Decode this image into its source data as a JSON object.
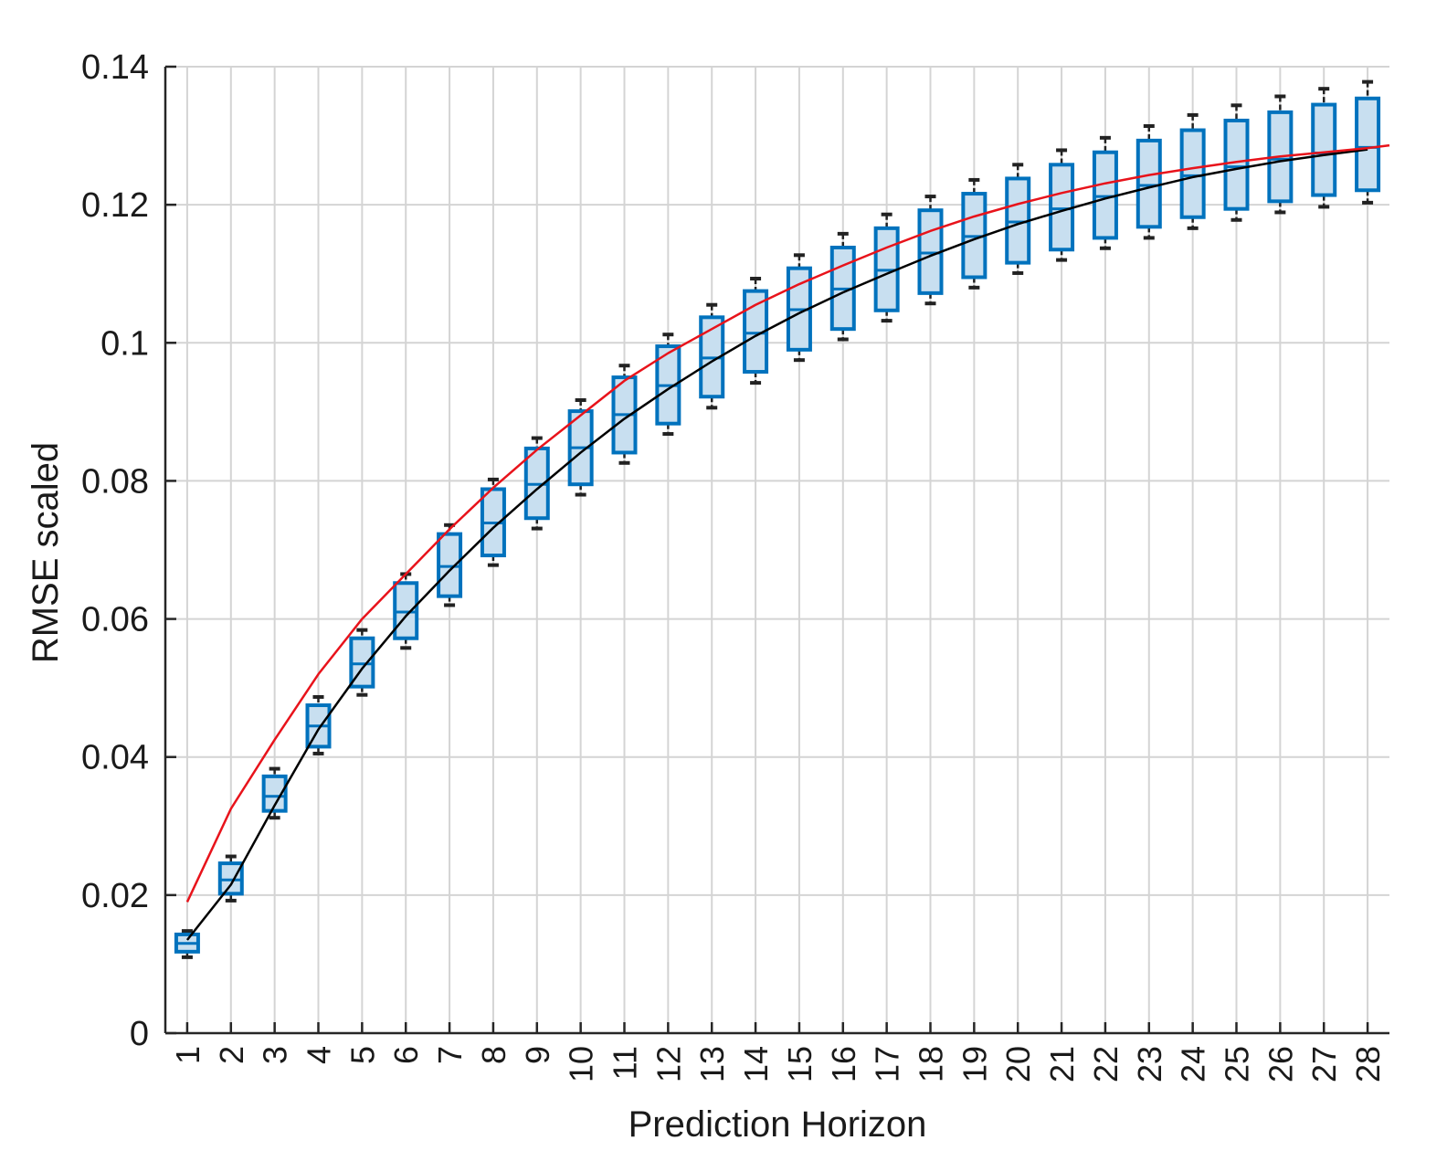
{
  "chart_data": {
    "type": "box",
    "title": "",
    "xlabel": "Prediction Horizon",
    "ylabel": "RMSE scaled",
    "xlim": [
      0.5,
      28.5
    ],
    "ylim": [
      0,
      0.14
    ],
    "x_ticks": [
      1,
      2,
      3,
      4,
      5,
      6,
      7,
      8,
      9,
      10,
      11,
      12,
      13,
      14,
      15,
      16,
      17,
      18,
      19,
      20,
      21,
      22,
      23,
      24,
      25,
      26,
      27,
      28
    ],
    "x_tick_labels": [
      "1",
      "2",
      "3",
      "4",
      "5",
      "6",
      "7",
      "8",
      "9",
      "10",
      "11",
      "12",
      "13",
      "14",
      "15",
      "16",
      "17",
      "18",
      "19",
      "20",
      "21",
      "22",
      "23",
      "24",
      "25",
      "26",
      "27",
      "28"
    ],
    "y_ticks": [
      0,
      0.02,
      0.04,
      0.06,
      0.08,
      0.1,
      0.12,
      0.14
    ],
    "y_tick_labels": [
      "0",
      "0.02",
      "0.04",
      "0.06",
      "0.08",
      "0.1",
      "0.12",
      "0.14"
    ],
    "grid": true,
    "boxes": [
      {
        "x": 1,
        "whisker_low": 0.011,
        "q1": 0.0118,
        "median": 0.013,
        "q3": 0.0143,
        "whisker_high": 0.0148
      },
      {
        "x": 2,
        "whisker_low": 0.0192,
        "q1": 0.0202,
        "median": 0.0222,
        "q3": 0.0246,
        "whisker_high": 0.0256
      },
      {
        "x": 3,
        "whisker_low": 0.0312,
        "q1": 0.0322,
        "median": 0.0343,
        "q3": 0.0372,
        "whisker_high": 0.0383
      },
      {
        "x": 4,
        "whisker_low": 0.0405,
        "q1": 0.0415,
        "median": 0.0445,
        "q3": 0.0475,
        "whisker_high": 0.0487
      },
      {
        "x": 5,
        "whisker_low": 0.049,
        "q1": 0.0502,
        "median": 0.0535,
        "q3": 0.0572,
        "whisker_high": 0.0584
      },
      {
        "x": 6,
        "whisker_low": 0.0558,
        "q1": 0.0572,
        "median": 0.061,
        "q3": 0.0652,
        "whisker_high": 0.0665
      },
      {
        "x": 7,
        "whisker_low": 0.062,
        "q1": 0.0633,
        "median": 0.0676,
        "q3": 0.0723,
        "whisker_high": 0.0736
      },
      {
        "x": 8,
        "whisker_low": 0.0678,
        "q1": 0.0692,
        "median": 0.0739,
        "q3": 0.0788,
        "whisker_high": 0.0802
      },
      {
        "x": 9,
        "whisker_low": 0.0731,
        "q1": 0.0746,
        "median": 0.0795,
        "q3": 0.0847,
        "whisker_high": 0.0862
      },
      {
        "x": 10,
        "whisker_low": 0.078,
        "q1": 0.0795,
        "median": 0.0848,
        "q3": 0.0901,
        "whisker_high": 0.0917
      },
      {
        "x": 11,
        "whisker_low": 0.0826,
        "q1": 0.0841,
        "median": 0.0896,
        "q3": 0.095,
        "whisker_high": 0.0967
      },
      {
        "x": 12,
        "whisker_low": 0.0868,
        "q1": 0.0883,
        "median": 0.0938,
        "q3": 0.0995,
        "whisker_high": 0.1012
      },
      {
        "x": 13,
        "whisker_low": 0.0906,
        "q1": 0.0922,
        "median": 0.0978,
        "q3": 0.1037,
        "whisker_high": 0.1055
      },
      {
        "x": 14,
        "whisker_low": 0.0942,
        "q1": 0.0958,
        "median": 0.1014,
        "q3": 0.1075,
        "whisker_high": 0.1093
      },
      {
        "x": 15,
        "whisker_low": 0.0975,
        "q1": 0.099,
        "median": 0.1048,
        "q3": 0.1108,
        "whisker_high": 0.1127
      },
      {
        "x": 16,
        "whisker_low": 0.1005,
        "q1": 0.102,
        "median": 0.1078,
        "q3": 0.1138,
        "whisker_high": 0.1158
      },
      {
        "x": 17,
        "whisker_low": 0.1032,
        "q1": 0.1047,
        "median": 0.1105,
        "q3": 0.1166,
        "whisker_high": 0.1186
      },
      {
        "x": 18,
        "whisker_low": 0.1057,
        "q1": 0.1072,
        "median": 0.113,
        "q3": 0.1192,
        "whisker_high": 0.1212
      },
      {
        "x": 19,
        "whisker_low": 0.108,
        "q1": 0.1095,
        "median": 0.1154,
        "q3": 0.1216,
        "whisker_high": 0.1236
      },
      {
        "x": 20,
        "whisker_low": 0.1101,
        "q1": 0.1116,
        "median": 0.1175,
        "q3": 0.1238,
        "whisker_high": 0.1258
      },
      {
        "x": 21,
        "whisker_low": 0.112,
        "q1": 0.1135,
        "median": 0.1194,
        "q3": 0.1258,
        "whisker_high": 0.1279
      },
      {
        "x": 22,
        "whisker_low": 0.1137,
        "q1": 0.1152,
        "median": 0.1212,
        "q3": 0.1276,
        "whisker_high": 0.1297
      },
      {
        "x": 23,
        "whisker_low": 0.1152,
        "q1": 0.1168,
        "median": 0.1228,
        "q3": 0.1293,
        "whisker_high": 0.1314
      },
      {
        "x": 24,
        "whisker_low": 0.1166,
        "q1": 0.1182,
        "median": 0.1242,
        "q3": 0.1308,
        "whisker_high": 0.133
      },
      {
        "x": 25,
        "whisker_low": 0.1178,
        "q1": 0.1194,
        "median": 0.1255,
        "q3": 0.1322,
        "whisker_high": 0.1344
      },
      {
        "x": 26,
        "whisker_low": 0.1189,
        "q1": 0.1205,
        "median": 0.1266,
        "q3": 0.1334,
        "whisker_high": 0.1357
      },
      {
        "x": 27,
        "whisker_low": 0.1197,
        "q1": 0.1214,
        "median": 0.1275,
        "q3": 0.1345,
        "whisker_high": 0.1368
      },
      {
        "x": 28,
        "whisker_low": 0.1203,
        "q1": 0.1221,
        "median": 0.1283,
        "q3": 0.1354,
        "whisker_high": 0.1378
      }
    ],
    "series": [
      {
        "style": "black-line",
        "x": [
          1,
          2,
          3,
          4,
          5,
          6,
          7,
          8,
          9,
          10,
          11,
          12,
          13,
          14,
          15,
          16,
          17,
          18,
          19,
          20,
          21,
          22,
          23,
          24,
          25,
          26,
          27,
          28
        ],
        "values": [
          0.0135,
          0.0215,
          0.033,
          0.044,
          0.0528,
          0.0604,
          0.067,
          0.0732,
          0.0788,
          0.0841,
          0.089,
          0.0933,
          0.0973,
          0.101,
          0.1043,
          0.1073,
          0.11,
          0.1126,
          0.115,
          0.1172,
          0.1191,
          0.1209,
          0.1225,
          0.124,
          0.1252,
          0.1263,
          0.1272,
          0.128
        ]
      },
      {
        "style": "red-line",
        "x": [
          1,
          2,
          3,
          4,
          5,
          6,
          7,
          8,
          9,
          10,
          11,
          12,
          13,
          14,
          15,
          16,
          17,
          18,
          19,
          20,
          21,
          22,
          23,
          24,
          25,
          26,
          27,
          28,
          28.5
        ],
        "values": [
          0.019,
          0.0325,
          0.0425,
          0.052,
          0.06,
          0.0665,
          0.073,
          0.079,
          0.0845,
          0.0895,
          0.0945,
          0.0985,
          0.102,
          0.1055,
          0.1085,
          0.1112,
          0.1138,
          0.1162,
          0.1183,
          0.1201,
          0.1217,
          0.1231,
          0.1243,
          0.1253,
          0.1262,
          0.127,
          0.1276,
          0.1282,
          0.1286
        ]
      }
    ],
    "colors": {
      "box_edge": "#0072bd",
      "box_fill": "#c8dff0",
      "whisker": "#222222",
      "median_line": "#0072bd",
      "black_line": "#000000",
      "red_line": "#e8131b",
      "grid": "#d4d4d4",
      "axis": "#262626"
    }
  }
}
